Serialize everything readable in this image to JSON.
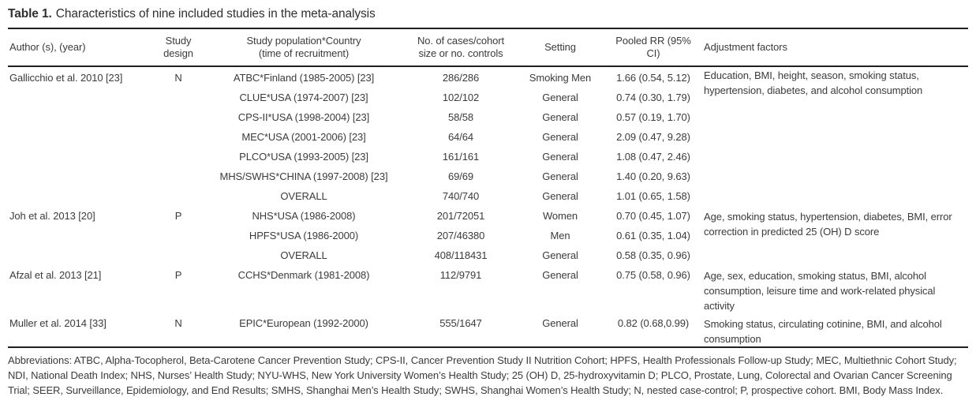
{
  "title": {
    "number": "Table 1.",
    "caption": "Characteristics of nine included studies in the meta-analysis"
  },
  "table": {
    "columns": [
      {
        "key": "author",
        "label": "Author (s), (year)"
      },
      {
        "key": "design",
        "label": "Study\ndesign"
      },
      {
        "key": "population",
        "label": "Study population*Country\n(time of recruitment)"
      },
      {
        "key": "cases",
        "label": "No. of cases/cohort\nsize or no. controls"
      },
      {
        "key": "setting",
        "label": "Setting"
      },
      {
        "key": "rr",
        "label": "Pooled RR (95%\nCI)"
      },
      {
        "key": "adjustment",
        "label": "Adjustment factors"
      }
    ],
    "rows": [
      {
        "cells": [
          {
            "col": "author",
            "text": "Gallicchio et al. 2010 [23]",
            "rowspan": 7
          },
          {
            "col": "design",
            "text": "N",
            "rowspan": 7
          },
          {
            "col": "population",
            "text": "ATBC*Finland (1985-2005) [23]"
          },
          {
            "col": "cases",
            "text": "286/286"
          },
          {
            "col": "setting",
            "text": "Smoking Men"
          },
          {
            "col": "rr",
            "text": "1.66 (0.54, 5.12)"
          },
          {
            "col": "adjustment",
            "text": "Education, BMI, height, season, smoking status, hypertension, diabetes, and alcohol consumption",
            "rowspan": 7
          }
        ]
      },
      {
        "cells": [
          {
            "col": "population",
            "text": "CLUE*USA (1974-2007) [23]"
          },
          {
            "col": "cases",
            "text": "102/102"
          },
          {
            "col": "setting",
            "text": "General"
          },
          {
            "col": "rr",
            "text": "0.74 (0.30, 1.79)"
          }
        ]
      },
      {
        "cells": [
          {
            "col": "population",
            "text": "CPS-II*USA (1998-2004) [23]"
          },
          {
            "col": "cases",
            "text": "58/58"
          },
          {
            "col": "setting",
            "text": "General"
          },
          {
            "col": "rr",
            "text": "0.57 (0.19, 1.70)"
          }
        ]
      },
      {
        "cells": [
          {
            "col": "population",
            "text": "MEC*USA (2001-2006) [23]"
          },
          {
            "col": "cases",
            "text": "64/64"
          },
          {
            "col": "setting",
            "text": "General"
          },
          {
            "col": "rr",
            "text": "2.09 (0.47, 9.28)"
          }
        ]
      },
      {
        "cells": [
          {
            "col": "population",
            "text": "PLCO*USA (1993-2005) [23]"
          },
          {
            "col": "cases",
            "text": "161/161"
          },
          {
            "col": "setting",
            "text": "General"
          },
          {
            "col": "rr",
            "text": "1.08 (0.47, 2.46)"
          }
        ]
      },
      {
        "cells": [
          {
            "col": "population",
            "text": "MHS/SWHS*CHINA (1997-2008) [23]"
          },
          {
            "col": "cases",
            "text": "69/69"
          },
          {
            "col": "setting",
            "text": "General"
          },
          {
            "col": "rr",
            "text": "1.40 (0.20, 9.63)"
          }
        ]
      },
      {
        "cells": [
          {
            "col": "population",
            "text": "OVERALL"
          },
          {
            "col": "cases",
            "text": "740/740"
          },
          {
            "col": "setting",
            "text": "General"
          },
          {
            "col": "rr",
            "text": "1.01 (0.65, 1.58)"
          }
        ]
      },
      {
        "cells": [
          {
            "col": "author",
            "text": "Joh et al. 2013 [20]",
            "rowspan": 3
          },
          {
            "col": "design",
            "text": "P",
            "rowspan": 3
          },
          {
            "col": "population",
            "text": "NHS*USA (1986-2008)"
          },
          {
            "col": "cases",
            "text": "201/72051"
          },
          {
            "col": "setting",
            "text": "Women"
          },
          {
            "col": "rr",
            "text": "0.70 (0.45, 1.07)"
          },
          {
            "col": "adjustment",
            "text": "Age, smoking status, hypertension, diabetes, BMI, error correction in predicted 25 (OH) D score",
            "rowspan": 3
          }
        ]
      },
      {
        "cells": [
          {
            "col": "population",
            "text": "HPFS*USA (1986-2000)"
          },
          {
            "col": "cases",
            "text": "207/46380"
          },
          {
            "col": "setting",
            "text": "Men"
          },
          {
            "col": "rr",
            "text": "0.61 (0.35, 1.04)"
          }
        ]
      },
      {
        "cells": [
          {
            "col": "population",
            "text": "OVERALL"
          },
          {
            "col": "cases",
            "text": "408/118431"
          },
          {
            "col": "setting",
            "text": "General"
          },
          {
            "col": "rr",
            "text": "0.58 (0.35, 0.96)"
          }
        ]
      },
      {
        "cells": [
          {
            "col": "author",
            "text": "Afzal et al. 2013 [21]"
          },
          {
            "col": "design",
            "text": "P"
          },
          {
            "col": "population",
            "text": "CCHS*Denmark (1981-2008)"
          },
          {
            "col": "cases",
            "text": "112/9791"
          },
          {
            "col": "setting",
            "text": "General"
          },
          {
            "col": "rr",
            "text": "0.75 (0.58, 0.96)"
          },
          {
            "col": "adjustment",
            "text": "Age, sex, education, smoking status, BMI, alcohol consumption, leisure time and work-related physical activity"
          }
        ]
      },
      {
        "cells": [
          {
            "col": "author",
            "text": "Muller et al. 2014 [33]"
          },
          {
            "col": "design",
            "text": "N"
          },
          {
            "col": "population",
            "text": "EPIC*European (1992-2000)"
          },
          {
            "col": "cases",
            "text": "555/1647"
          },
          {
            "col": "setting",
            "text": "General"
          },
          {
            "col": "rr",
            "text": "0.82 (0.68,0.99)"
          },
          {
            "col": "adjustment",
            "text": "Smoking status, circulating cotinine, BMI, and alcohol consumption"
          }
        ]
      }
    ]
  },
  "footnote": "Abbreviations: ATBC, Alpha-Tocopherol, Beta-Carotene Cancer Prevention Study; CPS-II, Cancer Prevention Study II Nutrition Cohort; HPFS, Health Professionals Follow-up Study; MEC, Multiethnic Cohort Study; NDI, National Death Index; NHS, Nurses’ Health Study; NYU-WHS, New York University Women’s Health Study; 25 (OH) D, 25-hydroxyvitamin D; PLCO, Prostate, Lung, Colorectal and Ovarian Cancer Screening Trial; SEER, Surveillance, Epidemiology, and End Results; SMHS, Shanghai Men’s Health Study; SWHS, Shanghai Women’s Health Study; N, nested case-control; P, prospective cohort. BMI, Body Mass Index."
}
